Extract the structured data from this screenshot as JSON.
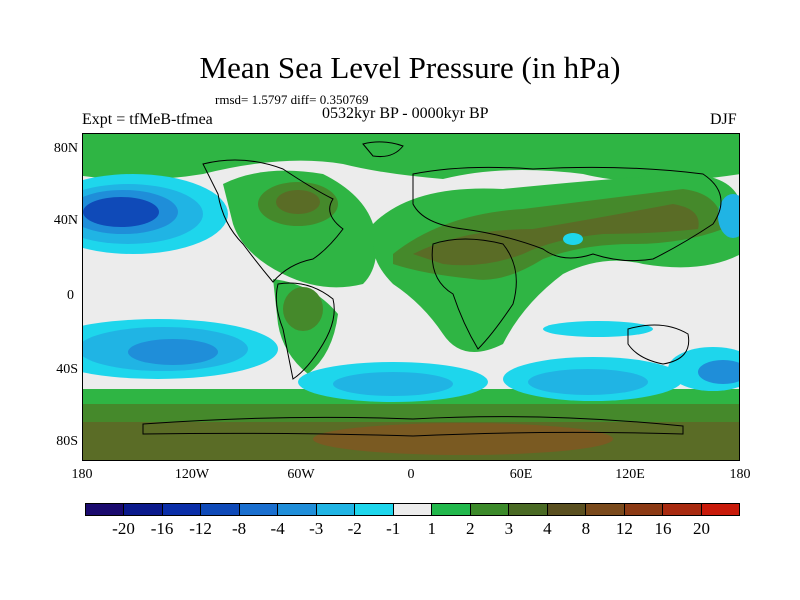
{
  "title": "Mean Sea Level Pressure (in hPa)",
  "stats": "rmsd= 1.5797 diff= 0.350769",
  "left_label": "Expt = tfMeB-tfmea",
  "center_label": "0532kyr BP - 0000kyr BP",
  "right_label": "DJF",
  "axes": {
    "y_ticks": [
      "80N",
      "40N",
      "0",
      "40S",
      "80S"
    ],
    "x_ticks": [
      "180",
      "120W",
      "60W",
      "0",
      "60E",
      "120E",
      "180"
    ]
  },
  "colorbar": {
    "colors": [
      "#1a0a6e",
      "#0b1a8c",
      "#0a2ea8",
      "#0f4ab8",
      "#1a6fcf",
      "#1f8ed9",
      "#20b4e4",
      "#1ed6ec",
      "#ececec",
      "#22b84c",
      "#3c8a2a",
      "#4a6a24",
      "#5a5020",
      "#7a4a1c",
      "#8c3a14",
      "#a82a10",
      "#c81a0a"
    ],
    "labels": [
      "-20",
      "-16",
      "-12",
      "-8",
      "-4",
      "-3",
      "-2",
      "-1",
      "1",
      "2",
      "3",
      "4",
      "8",
      "12",
      "16",
      "20"
    ]
  }
}
